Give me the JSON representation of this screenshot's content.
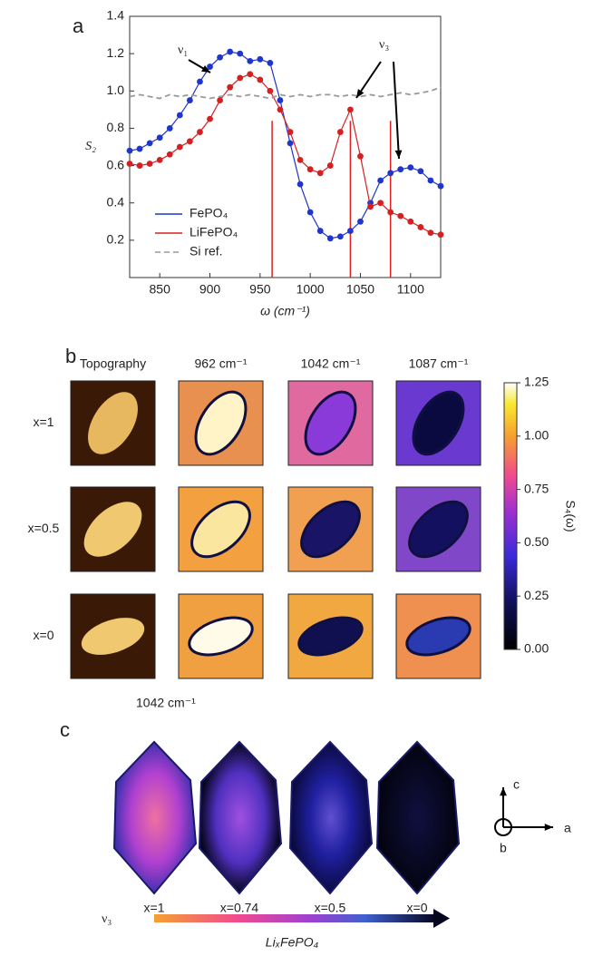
{
  "panel_labels": [
    "a",
    "b",
    "c"
  ],
  "chart_data": {
    "type": "line",
    "xlabel": "ω (cm⁻¹)",
    "ylabel": "S₂",
    "x": [
      820,
      830,
      840,
      850,
      860,
      870,
      880,
      890,
      900,
      910,
      920,
      930,
      940,
      950,
      960,
      970,
      980,
      990,
      1000,
      1010,
      1020,
      1030,
      1040,
      1050,
      1060,
      1070,
      1080,
      1090,
      1100,
      1110,
      1120,
      1130
    ],
    "series": [
      {
        "name": "FePO₄",
        "color": "#1f35cc",
        "markers": true,
        "linestyle": "solid",
        "values": [
          0.68,
          0.69,
          0.72,
          0.75,
          0.8,
          0.87,
          0.95,
          1.05,
          1.13,
          1.18,
          1.21,
          1.2,
          1.16,
          1.17,
          1.15,
          0.95,
          0.72,
          0.5,
          0.35,
          0.25,
          0.21,
          0.22,
          0.25,
          0.3,
          0.4,
          0.52,
          0.56,
          0.58,
          0.59,
          0.57,
          0.52,
          0.49
        ]
      },
      {
        "name": "LiFePO₄",
        "color": "#d42020",
        "markers": true,
        "linestyle": "solid",
        "values": [
          0.61,
          0.6,
          0.61,
          0.63,
          0.66,
          0.7,
          0.73,
          0.78,
          0.85,
          0.95,
          1.02,
          1.07,
          1.09,
          1.06,
          1.0,
          0.9,
          0.78,
          0.63,
          0.58,
          0.56,
          0.6,
          0.78,
          0.9,
          0.65,
          0.38,
          0.4,
          0.35,
          0.33,
          0.3,
          0.27,
          0.24,
          0.23
        ]
      },
      {
        "name": "Si ref.",
        "color": "#999999",
        "markers": false,
        "linestyle": "dashed",
        "values": [
          0.97,
          0.98,
          0.97,
          0.96,
          0.98,
          0.97,
          0.98,
          0.97,
          0.96,
          0.97,
          0.98,
          0.97,
          0.98,
          0.97,
          0.96,
          0.98,
          0.97,
          0.98,
          0.97,
          0.98,
          0.98,
          0.97,
          0.98,
          0.97,
          0.98,
          0.97,
          0.98,
          0.99,
          0.98,
          0.99,
          1.0,
          1.02
        ]
      }
    ],
    "markers_x": [
      962,
      1040,
      1080
    ],
    "marker_color": "#e02020",
    "annotations": [
      "ν₁",
      "ν₃"
    ],
    "xlim": [
      820,
      1130
    ],
    "xticks": [
      850,
      900,
      950,
      1000,
      1050,
      1100
    ],
    "ylim": [
      0,
      1.4
    ],
    "yticks": [
      0.2,
      0.4,
      0.6,
      0.8,
      {
        "value": 1,
        "label": "1.0"
      },
      1.2,
      1.4
    ],
    "legend": "lower left"
  },
  "panel_b": {
    "column_titles": [
      "Topography",
      "962 cm⁻¹",
      "1042 cm⁻¹",
      "1087 cm⁻¹"
    ],
    "row_labels": [
      "x=1",
      "x=0.5",
      "x=0"
    ],
    "colorbar": {
      "label": "S₄(ω)",
      "lim": [
        0,
        1.25
      ],
      "ticks": [
        {
          "value": 0,
          "label": "0.00"
        },
        {
          "value": 0.25,
          "label": "0.25"
        },
        {
          "value": 0.5,
          "label": "0.50"
        },
        {
          "value": 0.75,
          "label": "0.75"
        },
        {
          "value": 1,
          "label": "1.00"
        },
        {
          "value": 1.25,
          "label": "1.25"
        }
      ]
    }
  },
  "panel_c": {
    "title": "1042 cm⁻¹",
    "labels": [
      "x=1",
      "x=0.74",
      "x=0.5",
      "x=0"
    ],
    "arrow_left": "ν₃",
    "arrow_label": "LiₓFePO₄",
    "axes": [
      "c",
      "a",
      "b"
    ]
  }
}
